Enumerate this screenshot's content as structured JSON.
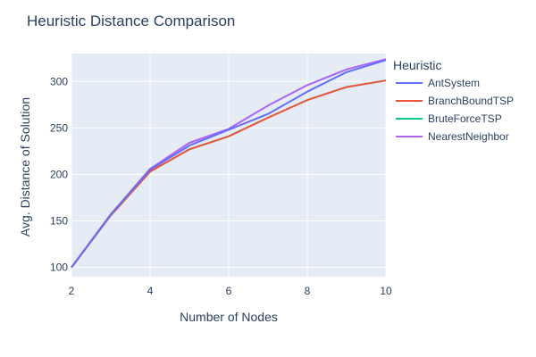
{
  "chart_data": {
    "type": "line",
    "title": "Heuristic Distance Comparison",
    "xlabel": "Number of Nodes",
    "ylabel": "Avg. Distance of Solution",
    "xlim": [
      2,
      10
    ],
    "ylim": [
      90,
      330
    ],
    "x_ticks": [
      2,
      4,
      6,
      8,
      10
    ],
    "y_ticks": [
      100,
      150,
      200,
      250,
      300
    ],
    "grid": true,
    "legend": {
      "title": "Heuristic",
      "placement": "right"
    },
    "x": [
      2,
      3,
      4,
      5,
      6,
      7,
      8,
      9,
      10
    ],
    "series": [
      {
        "name": "AntSystem",
        "color": "#636efa",
        "values": [
          100,
          157,
          205,
          231,
          248,
          265,
          289,
          310,
          323
        ]
      },
      {
        "name": "BranchBoundTSP",
        "color": "#ef553b",
        "values": [
          100,
          156,
          203,
          227,
          241,
          261,
          280,
          294,
          301
        ]
      },
      {
        "name": "BruteForceTSP",
        "color": "#00cc96",
        "values": [
          100,
          156,
          203,
          227,
          241,
          261,
          280,
          294,
          301
        ]
      },
      {
        "name": "NearestNeighbor",
        "color": "#ab63fa",
        "values": [
          100,
          157,
          206,
          234,
          249,
          274,
          296,
          313,
          324
        ]
      }
    ]
  }
}
